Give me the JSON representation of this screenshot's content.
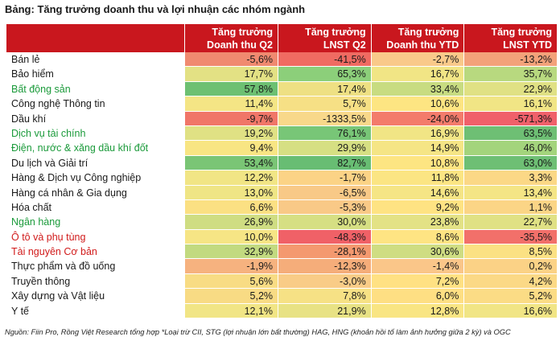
{
  "title": "Bảng: Tăng trưởng doanh thu và lợi nhuận các nhóm ngành",
  "headers": [
    {
      "line1": "Tăng trưởng",
      "line2": "Doanh thu Q2"
    },
    {
      "line1": "Tăng trưởng",
      "line2": "LNST Q2"
    },
    {
      "line1": "Tăng trưởng",
      "line2": "Doanh thu YTD"
    },
    {
      "line1": "Tăng trưởng",
      "line2": "LNST YTD"
    }
  ],
  "colors": {
    "header_bg": "#c9171e",
    "name_green": "#1a9a3a",
    "name_red": "#d11a1a"
  },
  "rows": [
    {
      "name": "Bán lẻ",
      "style": "normal",
      "values": [
        "-5,6%",
        "-41,5%",
        "-2,7%",
        "-13,2%"
      ],
      "colors": [
        "#f08a70",
        "#f06b62",
        "#f9c98a",
        "#f3a27a"
      ]
    },
    {
      "name": "Bảo hiểm",
      "style": "normal",
      "values": [
        "17,7%",
        "65,3%",
        "16,7%",
        "35,7%"
      ],
      "colors": [
        "#e3e184",
        "#8ccf7a",
        "#f1e585",
        "#b8d97f"
      ]
    },
    {
      "name": "Bất động sản",
      "style": "green",
      "values": [
        "57,8%",
        "17,4%",
        "33,4%",
        "22,9%"
      ],
      "colors": [
        "#6dc072",
        "#eee083",
        "#c8dc81",
        "#e0e184"
      ]
    },
    {
      "name": "Công nghệ Thông tin",
      "style": "normal",
      "values": [
        "11,4%",
        "5,7%",
        "10,6%",
        "16,1%"
      ],
      "colors": [
        "#f4e585",
        "#f6e085",
        "#fde582",
        "#f1e585"
      ]
    },
    {
      "name": "Dầu khí",
      "style": "normal",
      "values": [
        "-9,7%",
        "-1333,5%",
        "-24,0%",
        "-571,3%"
      ],
      "colors": [
        "#f07668",
        "#f8d88a",
        "#f37b6b",
        "#f0606a"
      ]
    },
    {
      "name": "Dịch vụ tài chính",
      "style": "green",
      "values": [
        "19,2%",
        "76,1%",
        "16,9%",
        "63,5%"
      ],
      "colors": [
        "#e0e184",
        "#78c677",
        "#f1e585",
        "#6ebf74"
      ]
    },
    {
      "name": "Điện, nước & xăng dầu khí đốt",
      "style": "green",
      "values": [
        "9,4%",
        "29,9%",
        "14,9%",
        "46,0%"
      ],
      "colors": [
        "#f8e583",
        "#d6df83",
        "#f5e585",
        "#a3d47c"
      ]
    },
    {
      "name": "Du lịch và Giải trí",
      "style": "normal",
      "values": [
        "53,4%",
        "82,7%",
        "10,8%",
        "63,0%"
      ],
      "colors": [
        "#7ac575",
        "#68bd73",
        "#fde582",
        "#6ebf74"
      ]
    },
    {
      "name": "Hàng & Dịch vụ Công nghiệp",
      "style": "normal",
      "values": [
        "12,2%",
        "-1,7%",
        "11,8%",
        "3,3%"
      ],
      "colors": [
        "#f1e585",
        "#fbd386",
        "#fbe583",
        "#fbd886"
      ]
    },
    {
      "name": "Hàng cá nhân & Gia dụng",
      "style": "normal",
      "values": [
        "13,0%",
        "-6,5%",
        "14,6%",
        "13,4%"
      ],
      "colors": [
        "#efe585",
        "#f8c987",
        "#f5e585",
        "#f4e585"
      ]
    },
    {
      "name": "Hóa chất",
      "style": "normal",
      "values": [
        "6,6%",
        "-5,3%",
        "9,2%",
        "1,1%"
      ],
      "colors": [
        "#fbe083",
        "#f9c987",
        "#fee383",
        "#fbd586"
      ]
    },
    {
      "name": "Ngân hàng",
      "style": "green",
      "values": [
        "26,9%",
        "30,0%",
        "23,8%",
        "22,7%"
      ],
      "colors": [
        "#cfdd82",
        "#d6df83",
        "#e3e285",
        "#e0e184"
      ]
    },
    {
      "name": "Ô tô và phụ tùng",
      "style": "red",
      "values": [
        "10,0%",
        "-48,3%",
        "8,6%",
        "-35,5%"
      ],
      "colors": [
        "#f6e585",
        "#f06167",
        "#fee483",
        "#f2706a"
      ]
    },
    {
      "name": "Tài nguyên Cơ bản",
      "style": "red",
      "values": [
        "32,9%",
        "-28,1%",
        "30,6%",
        "8,5%"
      ],
      "colors": [
        "#c2da80",
        "#f4996f",
        "#cfdd82",
        "#fbe183"
      ]
    },
    {
      "name": "Thực phẩm và đồ uống",
      "style": "normal",
      "values": [
        "-1,9%",
        "-12,3%",
        "-1,4%",
        "0,2%"
      ],
      "colors": [
        "#f6b27f",
        "#f5ad7a",
        "#fac689",
        "#fbd286"
      ]
    },
    {
      "name": "Truyền thông",
      "style": "normal",
      "values": [
        "5,6%",
        "-3,0%",
        "7,2%",
        "4,2%"
      ],
      "colors": [
        "#f8dc84",
        "#f9cc87",
        "#ffe183",
        "#fbd986"
      ]
    },
    {
      "name": "Xây dựng và Vật liệu",
      "style": "normal",
      "values": [
        "5,2%",
        "7,8%",
        "6,0%",
        "5,2%"
      ],
      "colors": [
        "#f8db84",
        "#f6e185",
        "#fedf83",
        "#fbdc85"
      ]
    },
    {
      "name": "Y tế",
      "style": "normal",
      "values": [
        "12,1%",
        "21,9%",
        "12,8%",
        "16,6%"
      ],
      "colors": [
        "#f1e585",
        "#e8e284",
        "#f9e583",
        "#f1e585"
      ]
    }
  ],
  "source": "Nguồn: Fiin Pro, Rồng Việt Research tổng hợp *Loại trừ CII, STG (lợi nhuận lớn bất thường) HAG, HNG (khoản hồi tố làm ảnh hưởng giữa 2 kỳ) và OGC"
}
